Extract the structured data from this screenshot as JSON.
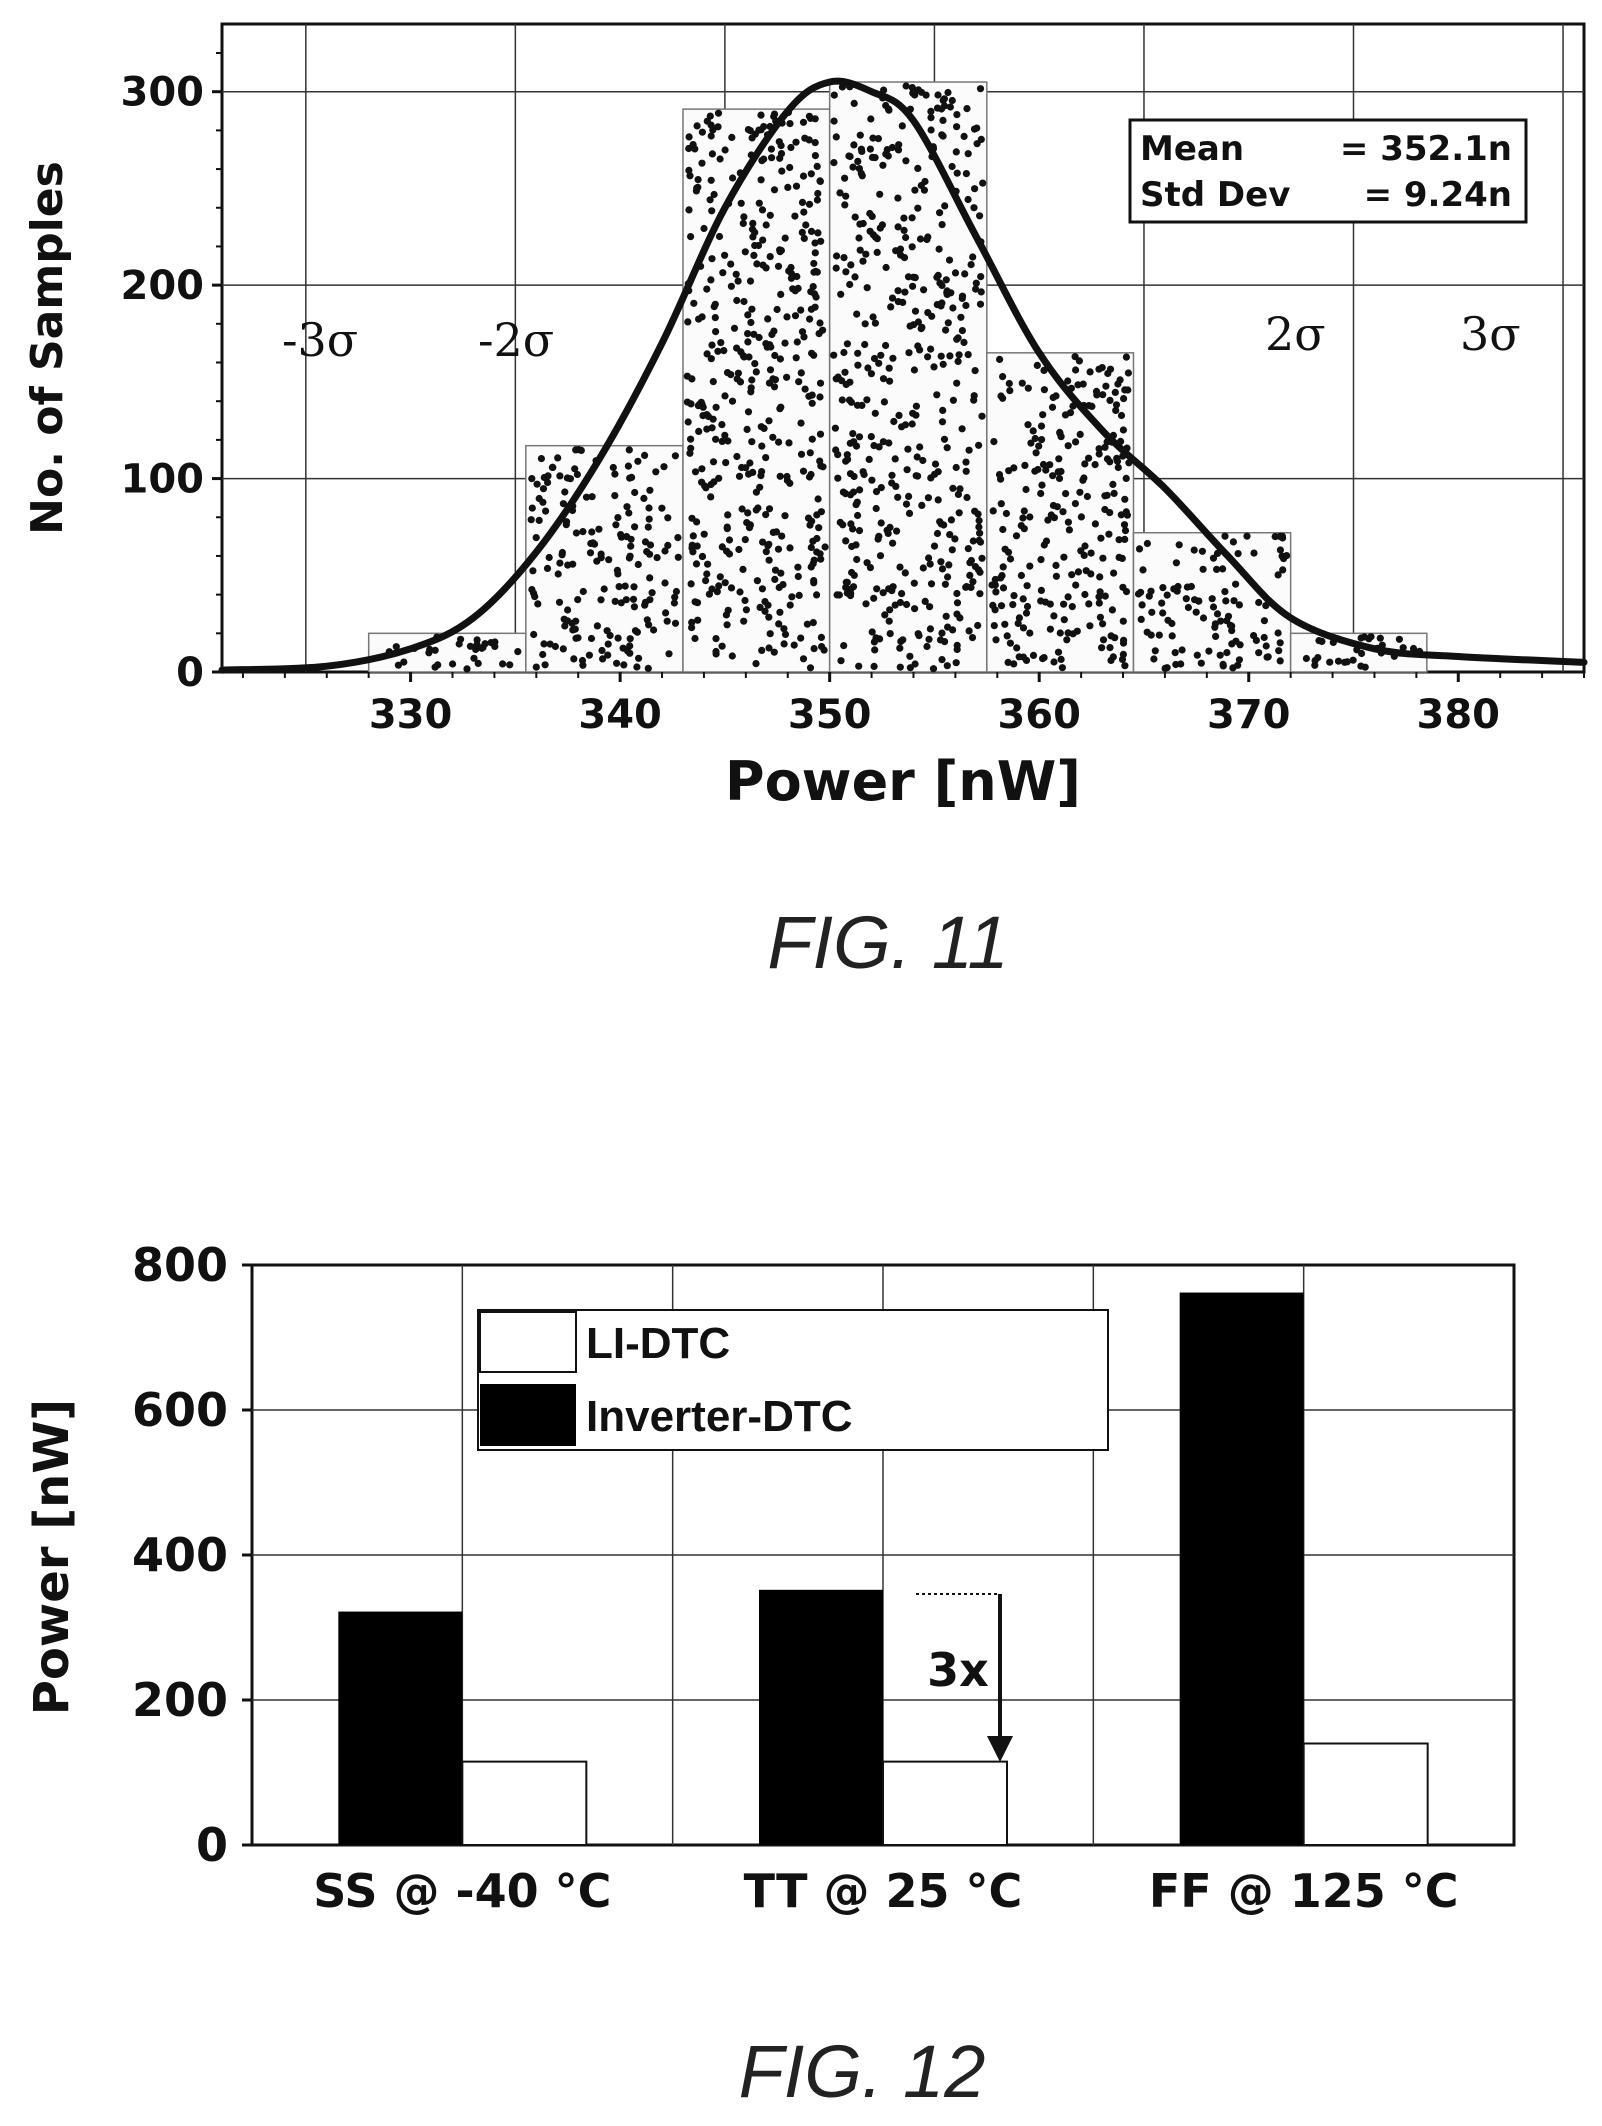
{
  "figures": {
    "fig11_caption": "FIG. 11",
    "fig12_caption": "FIG. 12"
  },
  "chart_data": [
    {
      "type": "bar",
      "subtype": "histogram with fitted curve and sample scatter",
      "xlabel": "Power [nW]",
      "ylabel": "No. of Samples",
      "xlim": [
        321,
        386
      ],
      "ylim": [
        0,
        335
      ],
      "xticks": [
        "330",
        "340",
        "350",
        "360",
        "370",
        "380"
      ],
      "yticks": [
        "0",
        "100",
        "200",
        "300"
      ],
      "grid": true,
      "bins": [
        {
          "x0": 328,
          "x1": 335.5,
          "value": 20
        },
        {
          "x0": 335.5,
          "x1": 343,
          "value": 117
        },
        {
          "x0": 343,
          "x1": 350,
          "value": 291
        },
        {
          "x0": 350,
          "x1": 357.5,
          "value": 305
        },
        {
          "x0": 357.5,
          "x1": 364.5,
          "value": 165
        },
        {
          "x0": 364.5,
          "x1": 372,
          "value": 72
        },
        {
          "x0": 372,
          "x1": 378.5,
          "value": 20
        }
      ],
      "fit_curve": {
        "x": [
          321,
          326,
          330,
          333,
          336,
          339,
          342,
          345,
          348,
          350,
          352,
          354,
          357,
          360,
          363,
          366,
          369,
          372,
          376,
          380,
          386
        ],
        "y": [
          1,
          3,
          12,
          28,
          62,
          110,
          170,
          240,
          290,
          305,
          300,
          285,
          225,
          165,
          125,
          95,
          60,
          28,
          12,
          8,
          5
        ]
      },
      "stats_box": {
        "line1_label": "Mean",
        "line1_value": "= 352.1n",
        "line2_label": "Std Dev",
        "line2_value": "= 9.24n"
      },
      "sigma_labels": [
        "-3σ",
        "-2σ",
        "2σ",
        "3σ"
      ]
    },
    {
      "type": "bar",
      "ylabel": "Power [nW]",
      "xlabel": "",
      "ylim": [
        0,
        800
      ],
      "yticks": [
        "0",
        "200",
        "400",
        "600",
        "800"
      ],
      "grid": true,
      "categories": [
        "SS @ -40 °C",
        "TT @ 25 °C",
        "FF @ 125 °C"
      ],
      "series": [
        {
          "name": "Inverter-DTC",
          "color": "#000000",
          "values": [
            322,
            352,
            762
          ]
        },
        {
          "name": "LI-DTC",
          "color": "#ffffff",
          "values": [
            115,
            115,
            140
          ]
        }
      ],
      "legend_position": "top-left",
      "annotation": "3x"
    }
  ]
}
